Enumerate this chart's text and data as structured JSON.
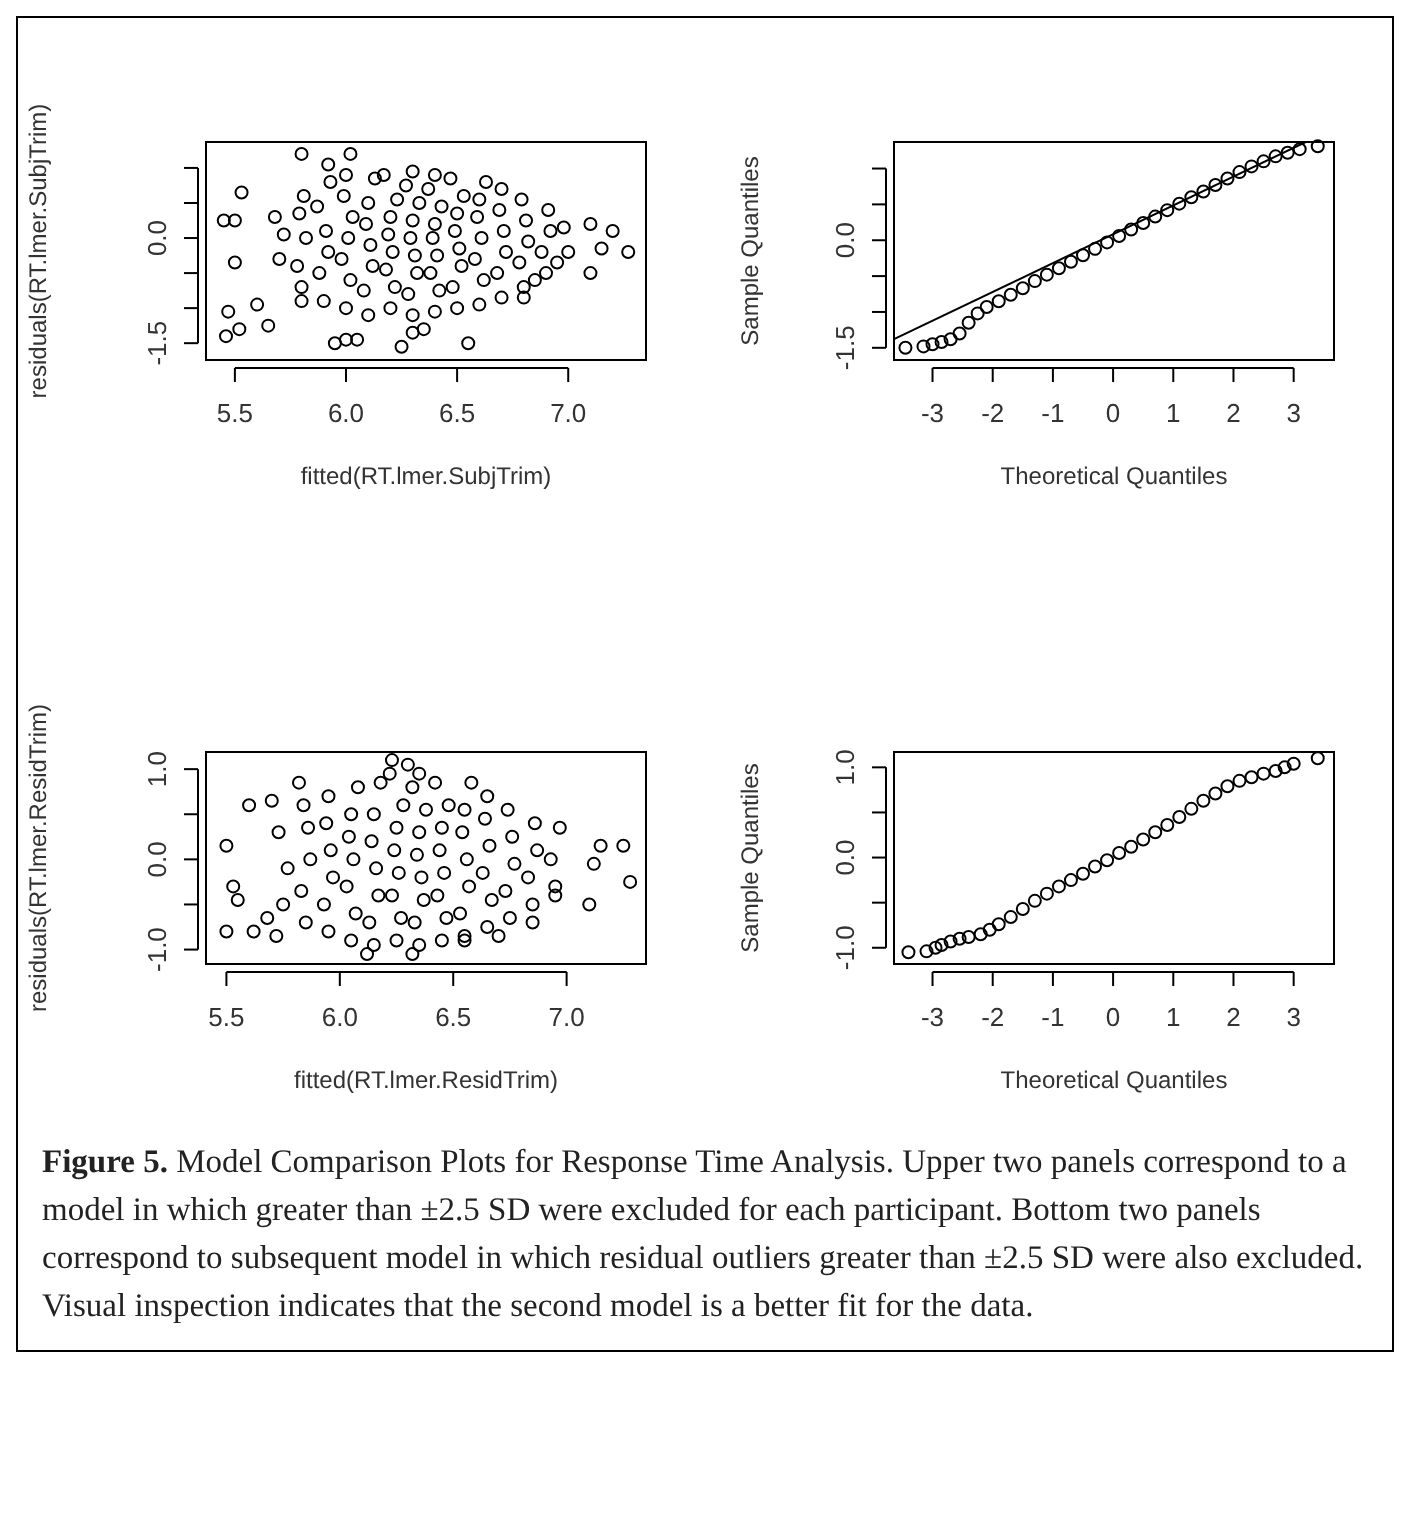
{
  "chart_data": [
    {
      "type": "scatter",
      "xlabel": "fitted(RT.lmer.SubjTrim)",
      "ylabel": "residuals(RT.lmer.SubjTrim)",
      "marker": "circle",
      "xlim": [
        5.37,
        7.35
      ],
      "ylim": [
        -1.74,
        1.37
      ],
      "xticks": [
        {
          "value": 5.5,
          "label": "5.5"
        },
        {
          "value": 6,
          "label": "6.0"
        },
        {
          "value": 6.5,
          "label": "6.5"
        },
        {
          "value": 7,
          "label": "7.0"
        }
      ],
      "yticks": [
        {
          "value": -1.5,
          "label": "-1.5"
        },
        {
          "value": -1,
          "label": null
        },
        {
          "value": -0.5,
          "label": null
        },
        {
          "value": 0,
          "label": "0.0"
        },
        {
          "value": 0.5,
          "label": null
        },
        {
          "value": 1,
          "label": null
        }
      ],
      "series": [
        {
          "color": "#000000",
          "x": [
            5.45,
            5.5,
            5.53,
            5.47,
            5.46,
            5.5,
            5.52,
            5.6,
            5.65,
            5.8,
            5.8,
            5.92,
            5.95,
            6.0,
            6.05,
            6.02,
            6.25,
            6.3,
            6.35,
            6.55,
            7.1,
            7.15,
            7.2,
            7.27,
            7.1,
            6.95,
            6.85,
            6.8,
            5.7,
            5.72,
            5.68,
            5.8,
            5.78,
            5.82,
            5.79,
            5.81,
            5.9,
            5.88,
            5.92,
            5.91,
            5.87,
            5.93,
            6.0,
            6.02,
            5.98,
            6.01,
            6.03,
            5.99,
            6.0,
            6.1,
            6.08,
            6.12,
            6.11,
            6.09,
            6.1,
            6.13,
            6.2,
            6.22,
            6.18,
            6.21,
            6.19,
            6.2,
            6.23,
            6.17,
            6.3,
            6.28,
            6.32,
            6.31,
            6.29,
            6.3,
            6.33,
            6.27,
            6.3,
            6.4,
            6.42,
            6.38,
            6.41,
            6.39,
            6.4,
            6.43,
            6.37,
            6.4,
            6.5,
            6.48,
            6.52,
            6.51,
            6.49,
            6.5,
            6.53,
            6.47,
            6.6,
            6.62,
            6.58,
            6.61,
            6.59,
            6.6,
            6.63,
            6.7,
            6.68,
            6.72,
            6.71,
            6.69,
            6.7,
            6.8,
            6.78,
            6.82,
            6.81,
            6.79,
            6.9,
            6.88,
            6.92,
            6.91,
            7.0,
            6.98
          ],
          "values": [
            0.25,
            0.25,
            0.65,
            -1.05,
            -1.4,
            -0.35,
            -1.3,
            -0.95,
            -1.25,
            -0.9,
            1.2,
            1.05,
            -1.5,
            -1.45,
            -1.45,
            1.2,
            -1.55,
            -1.35,
            -1.3,
            -1.5,
            -0.5,
            -0.15,
            0.1,
            -0.2,
            0.2,
            -0.35,
            -0.6,
            -0.85,
            -0.3,
            0.05,
            0.3,
            -0.7,
            -0.4,
            0,
            0.35,
            0.6,
            -0.9,
            -0.5,
            -0.2,
            0.1,
            0.45,
            0.8,
            -1.0,
            -0.6,
            -0.3,
            0,
            0.3,
            0.6,
            0.9,
            -1.1,
            -0.75,
            -0.4,
            -0.1,
            0.2,
            0.5,
            0.85,
            -1.0,
            -0.7,
            -0.45,
            -0.2,
            0.05,
            0.3,
            0.55,
            0.9,
            -1.1,
            -0.8,
            -0.5,
            -0.25,
            0,
            0.25,
            0.5,
            0.75,
            0.95,
            -1.05,
            -0.75,
            -0.5,
            -0.25,
            0,
            0.2,
            0.45,
            0.7,
            0.9,
            -1.0,
            -0.7,
            -0.4,
            -0.15,
            0.1,
            0.35,
            0.6,
            0.85,
            -0.95,
            -0.6,
            -0.3,
            0,
            0.3,
            0.55,
            0.8,
            -0.85,
            -0.5,
            -0.2,
            0.1,
            0.4,
            0.7,
            -0.7,
            -0.35,
            -0.05,
            0.25,
            0.55,
            -0.5,
            -0.2,
            0.1,
            0.4,
            -0.2,
            0.15
          ]
        }
      ]
    },
    {
      "type": "scatter",
      "xlabel": "Theoretical Quantiles",
      "ylabel": "Sample Quantiles",
      "marker": "circle",
      "xlim": [
        -3.64,
        3.67
      ],
      "ylim": [
        -1.67,
        1.37
      ],
      "xticks": [
        -3,
        -2,
        -1,
        0,
        1,
        2,
        3
      ],
      "yticks": [
        {
          "value": -1.5,
          "label": "-1.5"
        },
        {
          "value": -1,
          "label": null
        },
        {
          "value": -0.5,
          "label": null
        },
        {
          "value": 0,
          "label": "0.0"
        },
        {
          "value": 0.5,
          "label": null
        },
        {
          "value": 1,
          "label": null
        }
      ],
      "series": [
        {
          "color": "#000000",
          "x": [
            -3.45,
            -3.15,
            -3.0,
            -2.85,
            -2.7,
            -2.55,
            -2.4,
            -2.25,
            -2.1,
            -1.9,
            -1.7,
            -1.5,
            -1.3,
            -1.1,
            -0.9,
            -0.7,
            -0.5,
            -0.3,
            -0.1,
            0.1,
            0.3,
            0.5,
            0.7,
            0.9,
            1.1,
            1.3,
            1.5,
            1.7,
            1.9,
            2.1,
            2.3,
            2.5,
            2.7,
            2.9,
            3.1,
            3.4
          ],
          "values": [
            -1.5,
            -1.48,
            -1.45,
            -1.42,
            -1.38,
            -1.3,
            -1.15,
            -1.02,
            -0.93,
            -0.85,
            -0.76,
            -0.67,
            -0.57,
            -0.48,
            -0.39,
            -0.3,
            -0.21,
            -0.12,
            -0.03,
            0.06,
            0.15,
            0.24,
            0.33,
            0.42,
            0.51,
            0.6,
            0.68,
            0.77,
            0.86,
            0.95,
            1.03,
            1.1,
            1.17,
            1.22,
            1.27,
            1.31
          ]
        },
        {
          "type": "line",
          "marker": "none",
          "color": "#000000",
          "x": [
            -3.64,
            3.2
          ],
          "values": [
            -1.38,
            1.37
          ]
        }
      ]
    },
    {
      "type": "scatter",
      "xlabel": "fitted(RT.lmer.ResidTrim)",
      "ylabel": "residuals(RT.lmer.ResidTrim)",
      "marker": "circle",
      "xlim": [
        5.41,
        7.35
      ],
      "ylim": [
        -1.16,
        1.19
      ],
      "xticks": [
        {
          "value": 5.5,
          "label": "5.5"
        },
        {
          "value": 6,
          "label": "6.0"
        },
        {
          "value": 6.5,
          "label": "6.5"
        },
        {
          "value": 7,
          "label": "7.0"
        }
      ],
      "yticks": [
        {
          "value": -1,
          "label": "-1.0"
        },
        {
          "value": -0.5,
          "label": null
        },
        {
          "value": 0,
          "label": "0.0"
        },
        {
          "value": 0.5,
          "label": null
        },
        {
          "value": 1,
          "label": "1.0"
        }
      ],
      "series": [
        {
          "color": "#000000",
          "x": [
            5.5,
            5.5,
            5.53,
            5.55,
            5.6,
            5.62,
            5.68,
            5.7,
            5.72,
            5.82,
            6.12,
            6.23,
            6.3,
            6.32,
            7.1,
            7.15,
            7.25,
            7.28,
            7.12,
            6.95,
            6.85,
            6.7,
            6.55,
            5.75,
            5.77,
            5.73,
            5.85,
            5.83,
            5.87,
            5.86,
            5.84,
            5.95,
            5.93,
            5.97,
            5.96,
            5.94,
            5.95,
            6.05,
            6.07,
            6.03,
            6.06,
            6.04,
            6.05,
            6.08,
            6.15,
            6.13,
            6.17,
            6.16,
            6.14,
            6.15,
            6.18,
            6.25,
            6.27,
            6.23,
            6.26,
            6.24,
            6.25,
            6.28,
            6.22,
            6.35,
            6.33,
            6.37,
            6.36,
            6.34,
            6.35,
            6.38,
            6.32,
            6.35,
            6.45,
            6.47,
            6.43,
            6.46,
            6.44,
            6.45,
            6.48,
            6.42,
            6.55,
            6.53,
            6.57,
            6.56,
            6.54,
            6.55,
            6.58,
            6.65,
            6.67,
            6.63,
            6.66,
            6.64,
            6.65,
            6.75,
            6.73,
            6.77,
            6.76,
            6.74,
            6.85,
            6.83,
            6.87,
            6.86,
            6.95,
            6.93,
            6.97
          ],
          "values": [
            0.15,
            -0.8,
            -0.3,
            -0.45,
            0.6,
            -0.8,
            -0.65,
            0.65,
            -0.85,
            0.85,
            -1.05,
            1.1,
            1.05,
            -1.05,
            -0.5,
            0.15,
            0.15,
            -0.25,
            -0.05,
            -0.4,
            -0.7,
            -0.85,
            -0.9,
            -0.5,
            -0.1,
            0.3,
            -0.7,
            -0.35,
            0,
            0.35,
            0.6,
            -0.8,
            -0.5,
            -0.2,
            0.1,
            0.4,
            0.7,
            -0.9,
            -0.6,
            -0.3,
            0,
            0.25,
            0.5,
            0.8,
            -0.95,
            -0.7,
            -0.4,
            -0.1,
            0.2,
            0.5,
            0.85,
            -0.9,
            -0.65,
            -0.4,
            -0.15,
            0.1,
            0.35,
            0.6,
            0.95,
            -0.95,
            -0.7,
            -0.45,
            -0.2,
            0.05,
            0.3,
            0.55,
            0.8,
            0.95,
            -0.9,
            -0.65,
            -0.4,
            -0.15,
            0.1,
            0.35,
            0.6,
            0.85,
            -0.85,
            -0.6,
            -0.3,
            0,
            0.3,
            0.55,
            0.85,
            -0.75,
            -0.45,
            -0.15,
            0.15,
            0.45,
            0.7,
            -0.65,
            -0.35,
            -0.05,
            0.25,
            0.55,
            -0.5,
            -0.2,
            0.1,
            0.4,
            -0.3,
            0.0,
            0.35
          ]
        }
      ]
    },
    {
      "type": "scatter",
      "xlabel": "Theoretical Quantiles",
      "ylabel": "Sample Quantiles",
      "marker": "circle",
      "xlim": [
        -3.64,
        3.67
      ],
      "ylim": [
        -1.18,
        1.17
      ],
      "xticks": [
        -3,
        -2,
        -1,
        0,
        1,
        2,
        3
      ],
      "yticks": [
        {
          "value": -1,
          "label": "-1.0"
        },
        {
          "value": -0.5,
          "label": null
        },
        {
          "value": 0,
          "label": "0.0"
        },
        {
          "value": 0.5,
          "label": null
        },
        {
          "value": 1,
          "label": "1.0"
        }
      ],
      "annotations": [
        "Figure 5.",
        "Model Comparison Plots for Response Time Analysis. Upper two panels correspond to a model in which greater than ±2.5 SD were excluded for each participant. Bottom two panels correspond to subsequent model in which residual outliers greater than ±2.5 SD were also excluded. Visual inspection indicates that the second model is a better fit for the data."
      ],
      "series": [
        {
          "color": "#000000",
          "x": [
            -3.4,
            -3.1,
            -2.95,
            -2.85,
            -2.7,
            -2.55,
            -2.4,
            -2.2,
            -2.05,
            -1.9,
            -1.7,
            -1.5,
            -1.3,
            -1.1,
            -0.9,
            -0.7,
            -0.5,
            -0.3,
            -0.1,
            0.1,
            0.3,
            0.5,
            0.7,
            0.9,
            1.1,
            1.3,
            1.5,
            1.7,
            1.9,
            2.1,
            2.3,
            2.5,
            2.7,
            2.85,
            3.0,
            3.4
          ],
          "values": [
            -1.05,
            -1.04,
            -1.0,
            -0.97,
            -0.93,
            -0.9,
            -0.88,
            -0.85,
            -0.8,
            -0.74,
            -0.66,
            -0.57,
            -0.48,
            -0.4,
            -0.32,
            -0.25,
            -0.18,
            -0.1,
            -0.03,
            0.05,
            0.12,
            0.2,
            0.28,
            0.36,
            0.45,
            0.54,
            0.63,
            0.71,
            0.79,
            0.85,
            0.89,
            0.93,
            0.96,
            1.0,
            1.04,
            1.1
          ]
        }
      ]
    }
  ]
}
